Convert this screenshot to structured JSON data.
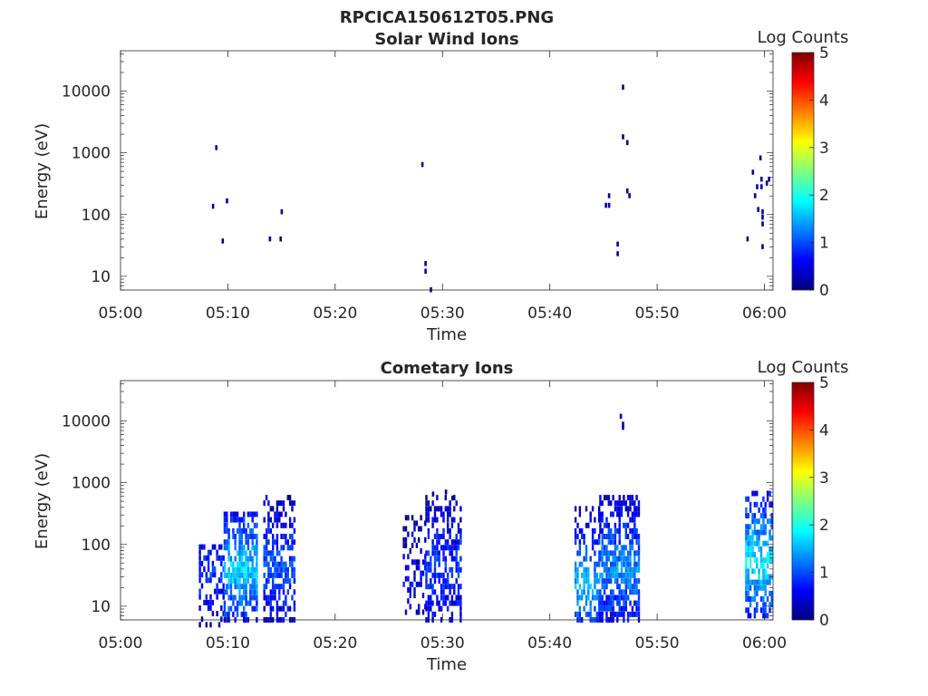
{
  "figure": {
    "title": "RPCICA150612T05.PNG"
  },
  "colormap": {
    "name": "jet",
    "stops": [
      "#00007f",
      "#0000ff",
      "#007fff",
      "#00ffff",
      "#7fff7f",
      "#ffff00",
      "#ff7f00",
      "#ff0000",
      "#7f0000"
    ]
  },
  "chart_data": [
    {
      "type": "heatmap",
      "title": "Solar Wind Ions",
      "xlabel": "Time",
      "ylabel": "Energy (eV)",
      "x_ticks": [
        "05:00",
        "05:10",
        "05:20",
        "05:30",
        "05:40",
        "05:50",
        "06:00"
      ],
      "x_range_minutes": [
        0,
        60.8
      ],
      "y_scale": "log",
      "y_range": [
        6,
        45000
      ],
      "y_ticks": [
        "10",
        "100",
        "1000",
        "10000"
      ],
      "y_tick_values": [
        10,
        100,
        1000,
        10000
      ],
      "colorbar": {
        "label": "Log Counts",
        "range": [
          0,
          5
        ],
        "ticks": [
          "0",
          "1",
          "2",
          "3",
          "4",
          "5"
        ]
      },
      "points": [
        [
          8.9,
          1200,
          0.1
        ],
        [
          8.6,
          135,
          0.2
        ],
        [
          9.9,
          165,
          0.2
        ],
        [
          9.5,
          37,
          0.05
        ],
        [
          13.9,
          40,
          0.1
        ],
        [
          14.9,
          40,
          0.1
        ],
        [
          15.0,
          110,
          0.1
        ],
        [
          28.1,
          640,
          0.1
        ],
        [
          28.4,
          12,
          0.2
        ],
        [
          28.4,
          16,
          0.2
        ],
        [
          28.9,
          6,
          0.1
        ],
        [
          45.2,
          140,
          0.2
        ],
        [
          45.5,
          140,
          0.2
        ],
        [
          45.5,
          200,
          0.1
        ],
        [
          46.3,
          23,
          0.2
        ],
        [
          46.3,
          33,
          0.1
        ],
        [
          46.8,
          11500,
          0.1
        ],
        [
          46.8,
          1800,
          0.1
        ],
        [
          47.2,
          1450,
          0.1
        ],
        [
          47.2,
          240,
          0.1
        ],
        [
          47.4,
          200,
          0.1
        ],
        [
          58.4,
          40,
          0.1
        ],
        [
          58.9,
          480,
          0.1
        ],
        [
          59.1,
          200,
          0.2
        ],
        [
          59.3,
          280,
          0.2
        ],
        [
          59.4,
          120,
          0.2
        ],
        [
          59.6,
          820,
          0.1
        ],
        [
          59.7,
          280,
          0.2
        ],
        [
          59.7,
          370,
          0.2
        ],
        [
          59.8,
          70,
          0.2
        ],
        [
          59.8,
          90,
          0.2
        ],
        [
          59.8,
          110,
          0.2
        ],
        [
          59.8,
          30,
          0.1
        ],
        [
          60.2,
          320,
          0.1
        ],
        [
          60.4,
          370,
          0.1
        ]
      ]
    },
    {
      "type": "heatmap",
      "title": "Cometary Ions",
      "xlabel": "Time",
      "ylabel": "Energy (eV)",
      "x_ticks": [
        "05:00",
        "05:10",
        "05:20",
        "05:30",
        "05:40",
        "05:50",
        "06:00"
      ],
      "x_range_minutes": [
        0,
        60.8
      ],
      "y_scale": "log",
      "y_range": [
        6,
        45000
      ],
      "y_ticks": [
        "10",
        "100",
        "1000",
        "10000"
      ],
      "y_tick_values": [
        10,
        100,
        1000,
        10000
      ],
      "colorbar": {
        "label": "Log Counts",
        "range": [
          0,
          5
        ],
        "ticks": [
          "0",
          "1",
          "2",
          "3",
          "4",
          "5"
        ]
      },
      "clusters": [
        {
          "t0": 7.3,
          "t1": 9.6,
          "emin": 5,
          "emax": 110,
          "peak_e": 38,
          "peak_v": 0.9,
          "density": 0.45
        },
        {
          "t0": 9.6,
          "t1": 12.7,
          "emin": 6,
          "emax": 350,
          "peak_e": 40,
          "peak_v": 1.7,
          "density": 0.82
        },
        {
          "t0": 13.3,
          "t1": 16.1,
          "emin": 6,
          "emax": 700,
          "peak_e": 40,
          "peak_v": 1.0,
          "density": 0.62
        },
        {
          "t0": 26.3,
          "t1": 28.4,
          "emin": 8,
          "emax": 280,
          "peak_e": 25,
          "peak_v": 0.6,
          "density": 0.35
        },
        {
          "t0": 28.4,
          "t1": 31.7,
          "emin": 6,
          "emax": 700,
          "peak_e": 40,
          "peak_v": 0.9,
          "density": 0.6
        },
        {
          "t0": 42.3,
          "t1": 44.6,
          "emin": 6,
          "emax": 400,
          "peak_e": 22,
          "peak_v": 1.5,
          "density": 0.6
        },
        {
          "t0": 44.6,
          "t1": 48.3,
          "emin": 6,
          "emax": 700,
          "peak_e": 40,
          "peak_v": 1.3,
          "density": 0.85
        },
        {
          "t0": 58.2,
          "t1": 60.8,
          "emin": 7,
          "emax": 800,
          "peak_e": 55,
          "peak_v": 1.8,
          "density": 0.72
        }
      ],
      "points": [
        [
          46.6,
          11800,
          0.1
        ],
        [
          46.8,
          8800,
          0.2
        ],
        [
          46.8,
          7800,
          0.2
        ],
        [
          30.3,
          700,
          0.1
        ],
        [
          30.9,
          560,
          0.1
        ],
        [
          29.1,
          650,
          0.1
        ]
      ]
    }
  ]
}
